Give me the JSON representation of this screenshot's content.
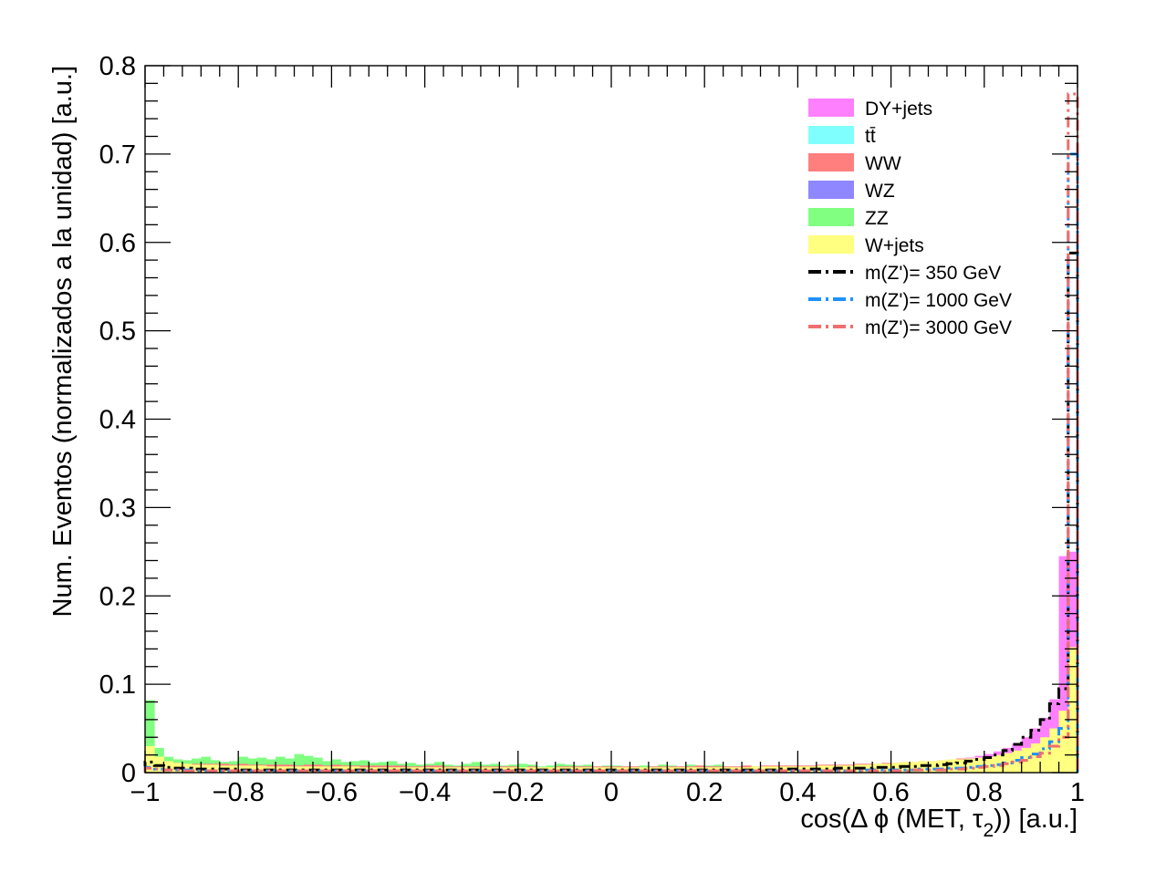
{
  "chart_data": {
    "type": "histogram",
    "xlabel_prefix": "cos(Δ ϕ (MET, τ",
    "xlabel_sub": "2",
    "xlabel_suffix": ")) [a.u.]",
    "ylabel": "Num. Eventos (normalizados a la unidad) [a.u.]",
    "xlim": [
      -1,
      1
    ],
    "ylim": [
      0,
      0.8
    ],
    "x_ticks": [
      "−1",
      "−0.8",
      "−0.6",
      "−0.4",
      "−0.2",
      "0",
      "0.2",
      "0.4",
      "0.6",
      "0.8",
      "1"
    ],
    "y_ticks": [
      "0",
      "0.1",
      "0.2",
      "0.3",
      "0.4",
      "0.5",
      "0.6",
      "0.7",
      "0.8"
    ],
    "grid": false,
    "legend_position": "top-right",
    "legend": [
      {
        "label": "DY+jets",
        "kind": "fill",
        "color": "#ff80ff"
      },
      {
        "label": "tt̄",
        "kind": "fill",
        "color": "#80ffff"
      },
      {
        "label": "WW",
        "kind": "fill",
        "color": "#ff7f7f"
      },
      {
        "label": "WZ",
        "kind": "fill",
        "color": "#8f87ff"
      },
      {
        "label": "ZZ",
        "kind": "fill",
        "color": "#80ff80"
      },
      {
        "label": "W+jets",
        "kind": "fill",
        "color": "#ffff80"
      },
      {
        "label": "m(Z')= 350 GeV",
        "kind": "line",
        "color": "#000000"
      },
      {
        "label": "m(Z')= 1000 GeV",
        "kind": "line",
        "color": "#1e90ff"
      },
      {
        "label": "m(Z')= 3000 GeV",
        "kind": "line",
        "color": "#f06e6e"
      }
    ],
    "bins": {
      "min": -1,
      "max": 1,
      "count": 100
    },
    "backgrounds": [
      {
        "name": "ZZ",
        "color": "#80ff80",
        "values": [
          0.082,
          0.028,
          0.018,
          0.015,
          0.014,
          0.016,
          0.018,
          0.014,
          0.012,
          0.013,
          0.018,
          0.016,
          0.017,
          0.015,
          0.018,
          0.016,
          0.021,
          0.019,
          0.017,
          0.013,
          0.015,
          0.012,
          0.013,
          0.014,
          0.011,
          0.012,
          0.013,
          0.01,
          0.011,
          0.009,
          0.01,
          0.012,
          0.009,
          0.008,
          0.01,
          0.012,
          0.009,
          0.01,
          0.008,
          0.009,
          0.01,
          0.009,
          0.007,
          0.008,
          0.01,
          0.009,
          0.008,
          0.009,
          0.007,
          0.008,
          0.008,
          0.007,
          0.007,
          0.008,
          0.007,
          0.009,
          0.008,
          0.007,
          0.009,
          0.008,
          0.008,
          0.009,
          0.007,
          0.006,
          0.008,
          0.007,
          0.006,
          0.007,
          0.006,
          0.006,
          0.006,
          0.007,
          0.006,
          0.005,
          0.006,
          0.005,
          0.006,
          0.006,
          0.007,
          0.006,
          0.008,
          0.009,
          0.011,
          0.01,
          0.011,
          0.012,
          0.013,
          0.014,
          0.013,
          0.016,
          0.018,
          0.018,
          0.02,
          0.024,
          0.028,
          0.038,
          0.045,
          0.058,
          0.08,
          0.14
        ]
      },
      {
        "name": "WW",
        "color": "#ff7f7f",
        "values": [
          0.02,
          0.016,
          0.012,
          0.011,
          0.01,
          0.01,
          0.01,
          0.01,
          0.01,
          0.009,
          0.01,
          0.009,
          0.009,
          0.009,
          0.009,
          0.009,
          0.008,
          0.009,
          0.009,
          0.008,
          0.009,
          0.008,
          0.008,
          0.008,
          0.008,
          0.008,
          0.008,
          0.008,
          0.007,
          0.007,
          0.008,
          0.008,
          0.007,
          0.007,
          0.007,
          0.007,
          0.007,
          0.007,
          0.007,
          0.007,
          0.006,
          0.007,
          0.006,
          0.006,
          0.007,
          0.007,
          0.007,
          0.007,
          0.007,
          0.007,
          0.007,
          0.007,
          0.007,
          0.006,
          0.007,
          0.007,
          0.007,
          0.007,
          0.007,
          0.008,
          0.007,
          0.007,
          0.007,
          0.007,
          0.008,
          0.007,
          0.008,
          0.008,
          0.008,
          0.008,
          0.008,
          0.008,
          0.009,
          0.009,
          0.009,
          0.009,
          0.01,
          0.01,
          0.01,
          0.011,
          0.011,
          0.012,
          0.012,
          0.013,
          0.013,
          0.014,
          0.015,
          0.016,
          0.017,
          0.018,
          0.019,
          0.02,
          0.022,
          0.025,
          0.029,
          0.035,
          0.045,
          0.058,
          0.075,
          0.2
        ]
      },
      {
        "name": "DY+jets",
        "color": "#ff80ff",
        "values": [
          0.012,
          0.01,
          0.009,
          0.008,
          0.008,
          0.007,
          0.007,
          0.007,
          0.007,
          0.006,
          0.006,
          0.006,
          0.006,
          0.006,
          0.006,
          0.006,
          0.006,
          0.006,
          0.006,
          0.005,
          0.005,
          0.005,
          0.005,
          0.005,
          0.005,
          0.005,
          0.005,
          0.005,
          0.005,
          0.005,
          0.005,
          0.005,
          0.005,
          0.005,
          0.005,
          0.005,
          0.005,
          0.004,
          0.004,
          0.004,
          0.004,
          0.004,
          0.004,
          0.004,
          0.004,
          0.004,
          0.004,
          0.004,
          0.004,
          0.004,
          0.004,
          0.004,
          0.004,
          0.004,
          0.004,
          0.004,
          0.004,
          0.004,
          0.004,
          0.004,
          0.005,
          0.005,
          0.005,
          0.005,
          0.005,
          0.005,
          0.005,
          0.005,
          0.005,
          0.005,
          0.006,
          0.006,
          0.006,
          0.006,
          0.006,
          0.007,
          0.007,
          0.007,
          0.008,
          0.008,
          0.009,
          0.009,
          0.01,
          0.011,
          0.012,
          0.013,
          0.014,
          0.015,
          0.017,
          0.019,
          0.021,
          0.024,
          0.028,
          0.033,
          0.04,
          0.05,
          0.062,
          0.083,
          0.245,
          0.25
        ]
      },
      {
        "name": "W+jets",
        "color": "#ffff80",
        "values": [
          0.03,
          0.018,
          0.013,
          0.011,
          0.01,
          0.009,
          0.009,
          0.009,
          0.008,
          0.008,
          0.008,
          0.008,
          0.008,
          0.007,
          0.007,
          0.007,
          0.007,
          0.007,
          0.007,
          0.007,
          0.007,
          0.007,
          0.007,
          0.006,
          0.006,
          0.006,
          0.006,
          0.006,
          0.006,
          0.006,
          0.006,
          0.006,
          0.006,
          0.006,
          0.006,
          0.006,
          0.006,
          0.006,
          0.006,
          0.006,
          0.006,
          0.006,
          0.006,
          0.006,
          0.006,
          0.006,
          0.006,
          0.006,
          0.006,
          0.006,
          0.006,
          0.006,
          0.006,
          0.006,
          0.006,
          0.006,
          0.006,
          0.006,
          0.006,
          0.006,
          0.006,
          0.006,
          0.006,
          0.006,
          0.006,
          0.007,
          0.007,
          0.007,
          0.007,
          0.007,
          0.007,
          0.007,
          0.008,
          0.008,
          0.008,
          0.008,
          0.009,
          0.009,
          0.01,
          0.01,
          0.011,
          0.012,
          0.012,
          0.013,
          0.013,
          0.014,
          0.015,
          0.015,
          0.016,
          0.017,
          0.018,
          0.02,
          0.022,
          0.025,
          0.028,
          0.033,
          0.04,
          0.05,
          0.07,
          0.142
        ]
      }
    ],
    "signals": [
      {
        "name": "m(Z')= 350 GeV",
        "color": "#000000",
        "values": [
          0.012,
          0.008,
          0.006,
          0.005,
          0.005,
          0.004,
          0.004,
          0.004,
          0.004,
          0.004,
          0.003,
          0.003,
          0.003,
          0.003,
          0.003,
          0.003,
          0.003,
          0.003,
          0.003,
          0.003,
          0.003,
          0.003,
          0.003,
          0.003,
          0.003,
          0.003,
          0.003,
          0.003,
          0.003,
          0.003,
          0.003,
          0.003,
          0.003,
          0.003,
          0.003,
          0.003,
          0.003,
          0.003,
          0.003,
          0.003,
          0.003,
          0.003,
          0.003,
          0.003,
          0.003,
          0.003,
          0.003,
          0.003,
          0.003,
          0.003,
          0.003,
          0.003,
          0.003,
          0.003,
          0.003,
          0.003,
          0.003,
          0.003,
          0.003,
          0.003,
          0.003,
          0.003,
          0.003,
          0.003,
          0.003,
          0.003,
          0.003,
          0.003,
          0.004,
          0.004,
          0.004,
          0.004,
          0.004,
          0.004,
          0.005,
          0.005,
          0.005,
          0.005,
          0.006,
          0.006,
          0.006,
          0.007,
          0.007,
          0.008,
          0.008,
          0.009,
          0.01,
          0.011,
          0.013,
          0.015,
          0.017,
          0.02,
          0.025,
          0.032,
          0.04,
          0.048,
          0.06,
          0.078,
          0.095,
          0.588
        ]
      },
      {
        "name": "m(Z')= 1000 GeV",
        "color": "#1e90ff",
        "values": [
          0.006,
          0.004,
          0.003,
          0.003,
          0.003,
          0.002,
          0.002,
          0.002,
          0.002,
          0.002,
          0.002,
          0.002,
          0.002,
          0.002,
          0.002,
          0.002,
          0.002,
          0.002,
          0.002,
          0.002,
          0.002,
          0.002,
          0.002,
          0.002,
          0.002,
          0.002,
          0.002,
          0.002,
          0.002,
          0.002,
          0.002,
          0.002,
          0.002,
          0.002,
          0.002,
          0.002,
          0.002,
          0.002,
          0.002,
          0.002,
          0.002,
          0.002,
          0.002,
          0.002,
          0.002,
          0.002,
          0.002,
          0.002,
          0.002,
          0.002,
          0.002,
          0.002,
          0.002,
          0.002,
          0.002,
          0.002,
          0.002,
          0.002,
          0.002,
          0.002,
          0.002,
          0.002,
          0.002,
          0.002,
          0.002,
          0.002,
          0.002,
          0.002,
          0.002,
          0.002,
          0.002,
          0.002,
          0.002,
          0.002,
          0.002,
          0.002,
          0.002,
          0.003,
          0.003,
          0.003,
          0.003,
          0.003,
          0.003,
          0.004,
          0.004,
          0.004,
          0.005,
          0.005,
          0.006,
          0.007,
          0.008,
          0.009,
          0.011,
          0.014,
          0.017,
          0.021,
          0.027,
          0.035,
          0.05,
          0.7
        ]
      },
      {
        "name": "m(Z')= 3000 GeV",
        "color": "#f06e6e",
        "values": [
          0.005,
          0.004,
          0.003,
          0.003,
          0.002,
          0.002,
          0.002,
          0.002,
          0.002,
          0.002,
          0.002,
          0.002,
          0.002,
          0.002,
          0.002,
          0.002,
          0.002,
          0.002,
          0.002,
          0.002,
          0.002,
          0.002,
          0.002,
          0.002,
          0.002,
          0.002,
          0.002,
          0.002,
          0.002,
          0.002,
          0.002,
          0.002,
          0.002,
          0.002,
          0.002,
          0.002,
          0.002,
          0.002,
          0.002,
          0.002,
          0.002,
          0.002,
          0.002,
          0.002,
          0.002,
          0.002,
          0.002,
          0.002,
          0.002,
          0.002,
          0.002,
          0.002,
          0.002,
          0.002,
          0.002,
          0.002,
          0.002,
          0.002,
          0.002,
          0.002,
          0.002,
          0.002,
          0.002,
          0.002,
          0.002,
          0.002,
          0.002,
          0.002,
          0.002,
          0.002,
          0.002,
          0.002,
          0.002,
          0.002,
          0.002,
          0.002,
          0.002,
          0.002,
          0.002,
          0.002,
          0.002,
          0.002,
          0.003,
          0.003,
          0.003,
          0.003,
          0.004,
          0.004,
          0.005,
          0.006,
          0.007,
          0.008,
          0.01,
          0.012,
          0.014,
          0.018,
          0.022,
          0.03,
          0.04,
          0.768
        ]
      }
    ]
  }
}
